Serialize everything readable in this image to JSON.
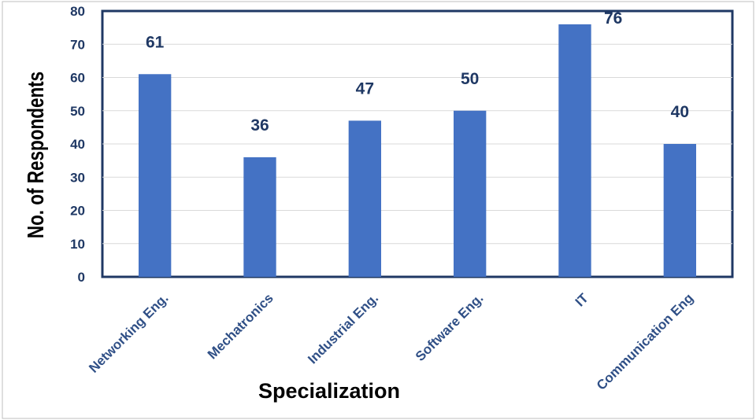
{
  "chart_data": {
    "type": "bar",
    "categories": [
      "Networking Eng.",
      "Mechatronics",
      "Industrial Eng.",
      "Software Eng.",
      "IT",
      "Communication Eng"
    ],
    "values": [
      61,
      36,
      47,
      50,
      76,
      40
    ],
    "data_labels": [
      "61",
      "36",
      "47",
      "50",
      "76",
      "40"
    ],
    "xlabel": "Specialization",
    "ylabel": "No. of Respondents",
    "ylim": [
      0,
      80
    ],
    "yticks": [
      "0",
      "10",
      "20",
      "30",
      "40",
      "50",
      "60",
      "70",
      "80"
    ],
    "grid": true,
    "legend": "none",
    "colors": {
      "bar": "#4472c4",
      "frame": "#1f3864",
      "grid": "#d9d9d9",
      "axis_text": "#1f3864"
    }
  }
}
